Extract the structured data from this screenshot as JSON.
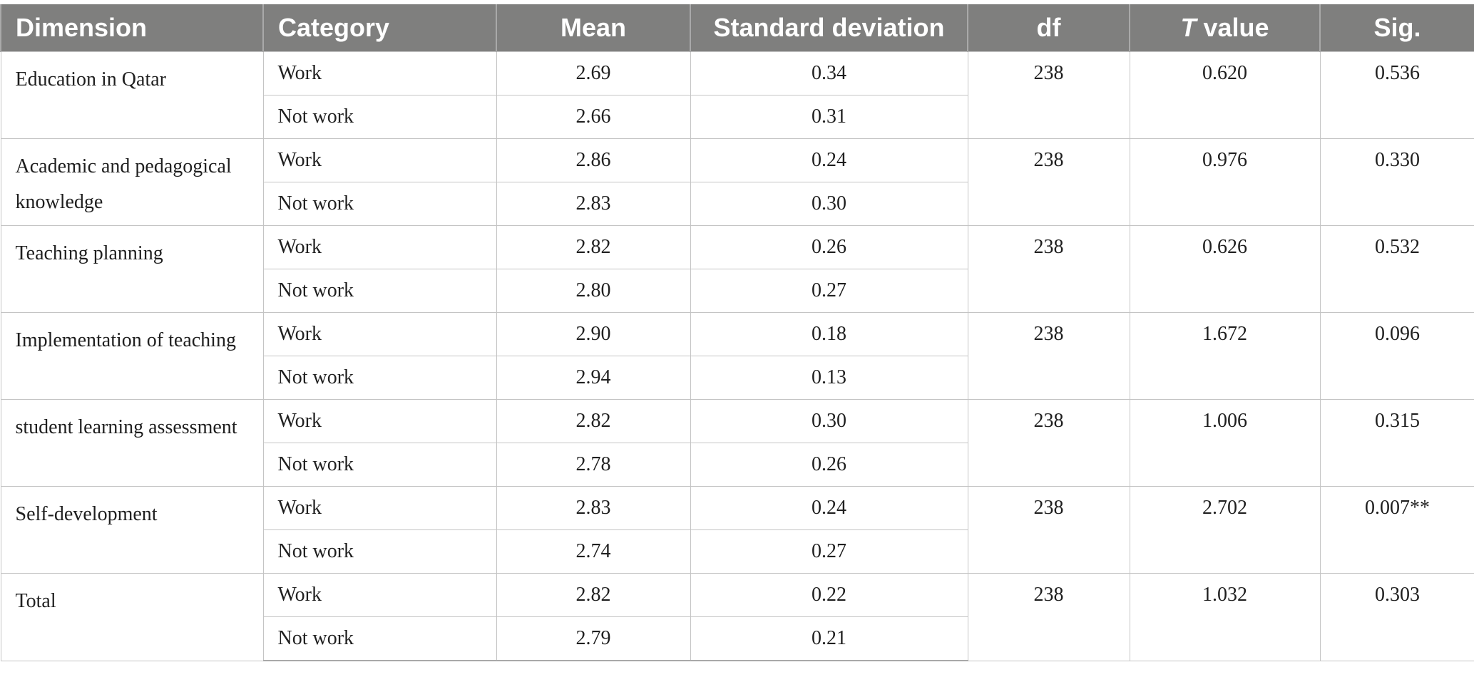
{
  "headers": {
    "dimension": "Dimension",
    "category": "Category",
    "mean": "Mean",
    "std": "Standard deviation",
    "df": "df",
    "t_italic": "T",
    "t_rest": " value",
    "sig": "Sig."
  },
  "rows": [
    {
      "dimension": "Education in Qatar",
      "df": "238",
      "t": "0.620",
      "sig": "0.536",
      "groups": [
        {
          "category": "Work",
          "mean": "2.69",
          "sd": "0.34"
        },
        {
          "category": "Not work",
          "mean": "2.66",
          "sd": "0.31"
        }
      ]
    },
    {
      "dimension": "Academic and pedagogical knowledge",
      "df": "238",
      "t": "0.976",
      "sig": "0.330",
      "groups": [
        {
          "category": "Work",
          "mean": "2.86",
          "sd": "0.24"
        },
        {
          "category": "Not work",
          "mean": "2.83",
          "sd": "0.30"
        }
      ]
    },
    {
      "dimension": "Teaching planning",
      "df": "238",
      "t": "0.626",
      "sig": "0.532",
      "groups": [
        {
          "category": "Work",
          "mean": "2.82",
          "sd": "0.26"
        },
        {
          "category": "Not work",
          "mean": "2.80",
          "sd": "0.27"
        }
      ]
    },
    {
      "dimension": "Implementation of teaching",
      "df": "238",
      "t": "1.672",
      "sig": "0.096",
      "groups": [
        {
          "category": "Work",
          "mean": "2.90",
          "sd": "0.18"
        },
        {
          "category": "Not work",
          "mean": "2.94",
          "sd": "0.13"
        }
      ]
    },
    {
      "dimension": "student learning assessment",
      "df": "238",
      "t": "1.006",
      "sig": "0.315",
      "groups": [
        {
          "category": "Work",
          "mean": "2.82",
          "sd": "0.30"
        },
        {
          "category": "Not work",
          "mean": "2.78",
          "sd": "0.26"
        }
      ]
    },
    {
      "dimension": "Self-development",
      "df": "238",
      "t": "2.702",
      "sig": "0.007**",
      "groups": [
        {
          "category": "Work",
          "mean": "2.83",
          "sd": "0.24"
        },
        {
          "category": "Not work",
          "mean": "2.74",
          "sd": "0.27"
        }
      ]
    },
    {
      "dimension": "Total",
      "df": "238",
      "t": "1.032",
      "sig": "0.303",
      "groups": [
        {
          "category": "Work",
          "mean": "2.82",
          "sd": "0.22"
        },
        {
          "category": "Not work",
          "mean": "2.79",
          "sd": "0.21"
        }
      ]
    }
  ]
}
